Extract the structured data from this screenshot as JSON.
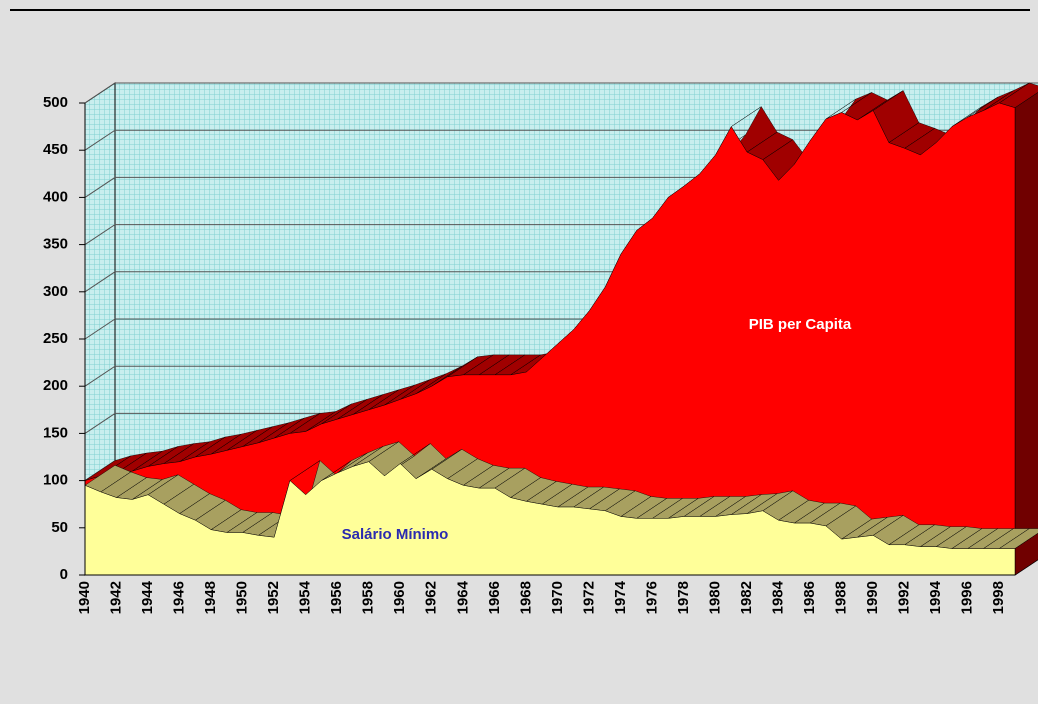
{
  "chart_data": {
    "type": "area",
    "categories": [
      1940,
      null,
      1942,
      null,
      1944,
      null,
      1946,
      null,
      1948,
      null,
      1950,
      null,
      1952,
      null,
      1954,
      null,
      1956,
      null,
      1958,
      null,
      1960,
      null,
      1962,
      null,
      1964,
      null,
      1966,
      null,
      1968,
      null,
      1970,
      null,
      1972,
      null,
      1974,
      null,
      1976,
      null,
      1978,
      null,
      1980,
      null,
      1982,
      null,
      1984,
      null,
      1986,
      null,
      1988,
      null,
      1990,
      null,
      1992,
      null,
      1994,
      null,
      1996,
      null,
      1998,
      null
    ],
    "series": [
      {
        "name": "PIB per Capita",
        "color": "#ff0000",
        "values": [
          100,
          105,
          108,
          110,
          115,
          118,
          120,
          125,
          128,
          132,
          136,
          140,
          145,
          150,
          152,
          160,
          165,
          170,
          175,
          180,
          186,
          192,
          200,
          210,
          212,
          212,
          212,
          212,
          215,
          230,
          245,
          260,
          280,
          305,
          340,
          365,
          378,
          400,
          412,
          425,
          445,
          475,
          448,
          440,
          418,
          435,
          460,
          483,
          490,
          482,
          492,
          458,
          452,
          445,
          458,
          475,
          485,
          492,
          500,
          495
        ]
      },
      {
        "name": "Salário Mínimo",
        "color": "#ffff99",
        "values": [
          95,
          88,
          82,
          80,
          85,
          75,
          65,
          58,
          48,
          45,
          45,
          42,
          40,
          100,
          85,
          100,
          108,
          115,
          120,
          105,
          118,
          102,
          112,
          102,
          95,
          92,
          92,
          82,
          78,
          75,
          72,
          72,
          70,
          68,
          62,
          60,
          60,
          60,
          62,
          62,
          62,
          64,
          65,
          68,
          58,
          55,
          55,
          52,
          38,
          40,
          42,
          32,
          32,
          30,
          30,
          28,
          28,
          28,
          28,
          28
        ]
      }
    ],
    "ylim": [
      0,
      500
    ],
    "yticks": [
      0,
      50,
      100,
      150,
      200,
      250,
      300,
      350,
      400,
      450,
      500
    ],
    "grid": true
  }
}
